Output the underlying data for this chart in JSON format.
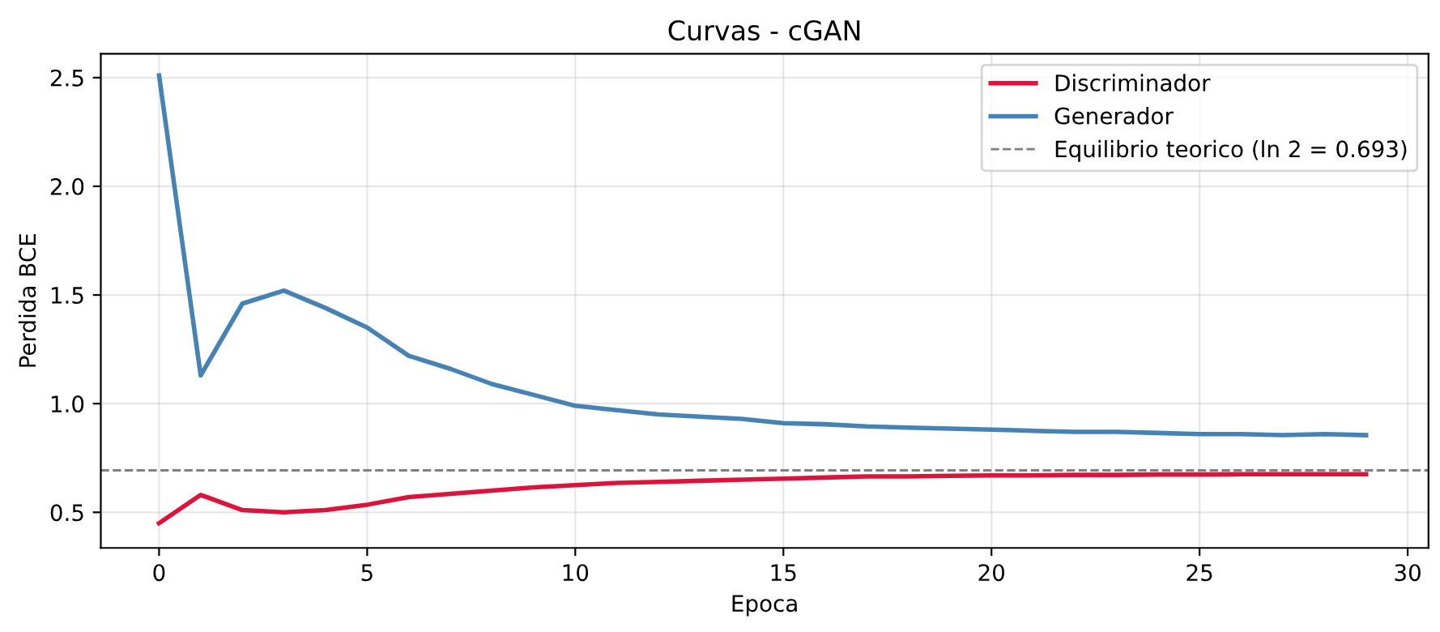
{
  "chart_data": {
    "type": "line",
    "title": "Curvas - cGAN",
    "xlabel": "Epoca",
    "ylabel": "Perdida BCE",
    "x": [
      0,
      1,
      2,
      3,
      4,
      5,
      6,
      7,
      8,
      9,
      10,
      11,
      12,
      13,
      14,
      15,
      16,
      17,
      18,
      19,
      20,
      21,
      22,
      23,
      24,
      25,
      26,
      27,
      28,
      29
    ],
    "series": [
      {
        "name": "Discriminador",
        "color": "#dc143c",
        "values": [
          0.45,
          0.58,
          0.51,
          0.5,
          0.51,
          0.535,
          0.57,
          0.585,
          0.6,
          0.615,
          0.625,
          0.635,
          0.64,
          0.645,
          0.65,
          0.655,
          0.66,
          0.665,
          0.665,
          0.668,
          0.67,
          0.67,
          0.672,
          0.672,
          0.674,
          0.674,
          0.675,
          0.675,
          0.675,
          0.675
        ]
      },
      {
        "name": "Generador",
        "color": "#4682b4",
        "values": [
          2.51,
          1.13,
          1.46,
          1.52,
          1.44,
          1.35,
          1.22,
          1.16,
          1.09,
          1.04,
          0.99,
          0.97,
          0.95,
          0.94,
          0.93,
          0.91,
          0.905,
          0.895,
          0.89,
          0.885,
          0.88,
          0.875,
          0.87,
          0.87,
          0.865,
          0.86,
          0.86,
          0.855,
          0.86,
          0.855
        ]
      }
    ],
    "ref_lines": [
      {
        "axis": "y",
        "value": 0.693,
        "label": "Equilibrio teorico (ln 2 = 0.693)",
        "color": "#808080",
        "line_style": "dashed"
      }
    ],
    "xlim": [
      -1.4,
      30.5
    ],
    "ylim": [
      0.336,
      2.61
    ],
    "xticks": [
      0,
      5,
      10,
      15,
      20,
      25,
      30
    ],
    "yticks": [
      0.5,
      {
        "value": 1,
        "label": "1.0"
      },
      1.5,
      {
        "value": 2,
        "label": "2.0"
      },
      2.5
    ],
    "grid": true,
    "legend": "top right",
    "marker": "none",
    "line_style": "solid"
  }
}
